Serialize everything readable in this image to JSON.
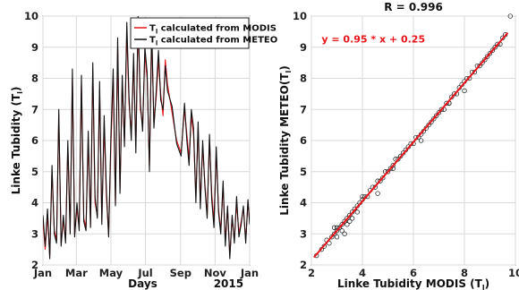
{
  "chart_data": [
    {
      "type": "line",
      "xlabel": "Days",
      "year_label": "2015",
      "ylabel": "Linke Tubidity (T",
      "ylabel_sub": "l",
      "ylabel_end": ")",
      "ylim": [
        2,
        10
      ],
      "yticks": [
        2,
        3,
        4,
        5,
        6,
        7,
        8,
        9,
        10
      ],
      "xticks": [
        "Jan",
        "Mar",
        "May",
        "Jul",
        "Sep",
        "Nov",
        "Jan"
      ],
      "xtick_days": [
        0,
        59,
        120,
        181,
        243,
        304,
        365
      ],
      "xlim": [
        0,
        365
      ],
      "grid": true,
      "legend_position": "top-right",
      "series": [
        {
          "name": "T",
          "name_sub": "l",
          "name_rest": " calculated from MODIS",
          "color": "#e8141a",
          "x": [
            0,
            4,
            8,
            12,
            16,
            20,
            24,
            28,
            32,
            36,
            40,
            44,
            48,
            52,
            56,
            60,
            64,
            68,
            72,
            76,
            80,
            84,
            88,
            92,
            96,
            100,
            104,
            108,
            112,
            116,
            120,
            124,
            128,
            132,
            136,
            140,
            144,
            148,
            152,
            156,
            160,
            164,
            168,
            172,
            176,
            180,
            184,
            188,
            192,
            196,
            200,
            204,
            208,
            212,
            216,
            220,
            228,
            236,
            244,
            250,
            254,
            258,
            262,
            266,
            270,
            274,
            278,
            282,
            286,
            290,
            294,
            298,
            302,
            306,
            310,
            314,
            318,
            322,
            326,
            330,
            334,
            338,
            342,
            346,
            350,
            354,
            358,
            362,
            365
          ],
          "values": [
            3.4,
            2.5,
            3.6,
            2.3,
            5.0,
            3.1,
            2.8,
            6.8,
            2.7,
            3.4,
            2.8,
            5.8,
            3.1,
            8.0,
            3.0,
            3.8,
            3.2,
            7.8,
            3.5,
            3.2,
            6.0,
            3.3,
            8.2,
            4.0,
            3.6,
            7.6,
            3.4,
            6.5,
            4.2,
            3.0,
            5.8,
            8.0,
            4.0,
            9.0,
            4.4,
            7.8,
            6.0,
            9.5,
            7.2,
            6.2,
            8.5,
            5.8,
            9.8,
            7.0,
            6.5,
            8.8,
            8.0,
            5.2,
            9.4,
            6.6,
            7.4,
            8.6,
            7.5,
            6.8,
            8.6,
            7.8,
            6.9,
            6.0,
            5.6,
            7.0,
            6.2,
            5.4,
            6.8,
            6.2,
            4.2,
            6.4,
            4.0,
            5.8,
            4.6,
            3.6,
            6.0,
            4.3,
            3.4,
            5.6,
            3.8,
            3.1,
            4.5,
            2.8,
            3.8,
            2.3,
            3.5,
            2.8,
            4.0,
            3.0,
            3.4,
            3.8,
            2.8,
            4.0,
            3.4
          ]
        },
        {
          "name": "T",
          "name_sub": "l",
          "name_rest": " calculated from METEO",
          "color": "#111111",
          "x": [
            0,
            4,
            8,
            12,
            16,
            20,
            24,
            28,
            32,
            36,
            40,
            44,
            48,
            52,
            56,
            60,
            64,
            68,
            72,
            76,
            80,
            84,
            88,
            92,
            96,
            100,
            104,
            108,
            112,
            116,
            120,
            124,
            128,
            132,
            136,
            140,
            144,
            148,
            152,
            156,
            160,
            164,
            168,
            172,
            176,
            180,
            184,
            188,
            192,
            196,
            200,
            204,
            208,
            212,
            216,
            220,
            228,
            236,
            244,
            250,
            254,
            258,
            262,
            266,
            270,
            274,
            278,
            282,
            286,
            290,
            294,
            298,
            302,
            306,
            310,
            314,
            318,
            322,
            326,
            330,
            334,
            338,
            342,
            346,
            350,
            354,
            358,
            362,
            365
          ],
          "values": [
            3.6,
            2.6,
            3.8,
            2.2,
            5.2,
            3.0,
            2.7,
            7.0,
            2.6,
            3.6,
            2.7,
            6.0,
            3.0,
            8.3,
            2.9,
            4.0,
            3.1,
            8.1,
            3.4,
            3.1,
            6.3,
            3.2,
            8.5,
            4.2,
            3.5,
            7.9,
            3.3,
            6.8,
            4.4,
            2.9,
            6.1,
            8.3,
            3.9,
            9.3,
            4.3,
            8.1,
            5.8,
            9.8,
            7.4,
            6.0,
            8.8,
            5.6,
            10.0,
            7.2,
            6.3,
            9.0,
            8.2,
            5.0,
            9.7,
            6.4,
            7.6,
            8.9,
            7.3,
            7.0,
            8.4,
            7.6,
            7.1,
            5.9,
            5.5,
            7.2,
            6.0,
            5.2,
            7.0,
            6.4,
            4.0,
            6.6,
            3.8,
            6.0,
            4.5,
            3.5,
            6.2,
            4.1,
            3.2,
            5.8,
            3.7,
            3.0,
            4.7,
            2.6,
            3.9,
            2.2,
            3.6,
            2.7,
            4.2,
            2.9,
            3.3,
            3.9,
            2.7,
            4.1,
            3.3
          ]
        }
      ]
    },
    {
      "type": "scatter",
      "title": "R  = 0.996",
      "xlabel": "Linke Tubidity  MODIS (T",
      "xlabel_sub": "l",
      "xlabel_end": ")",
      "ylabel": "Linke Tubidity METEO(T",
      "ylabel_sub": "l",
      "ylabel_end": ")",
      "xlim": [
        2,
        10
      ],
      "ylim": [
        2,
        10
      ],
      "xticks": [
        2,
        4,
        6,
        8,
        10
      ],
      "yticks": [
        2,
        3,
        4,
        5,
        6,
        7,
        8,
        9,
        10
      ],
      "grid": true,
      "fit": {
        "slope": 0.95,
        "intercept": 0.25,
        "label": "y = 0.95 * x + 0.25",
        "color": "#e8141a",
        "x_range": [
          2.1,
          9.7
        ]
      },
      "points": {
        "x": [
          2.2,
          2.4,
          2.5,
          2.6,
          2.7,
          2.8,
          2.9,
          3.0,
          3.0,
          3.1,
          3.2,
          3.2,
          3.3,
          3.4,
          3.4,
          3.5,
          3.6,
          3.6,
          3.7,
          3.8,
          3.8,
          3.9,
          4.0,
          4.1,
          4.2,
          4.3,
          4.4,
          4.5,
          4.6,
          4.7,
          4.8,
          4.9,
          5.0,
          5.1,
          5.2,
          5.3,
          5.4,
          5.5,
          5.6,
          5.7,
          5.8,
          5.9,
          6.0,
          6.1,
          6.2,
          6.3,
          6.4,
          6.5,
          6.6,
          6.7,
          6.8,
          6.9,
          7.0,
          7.1,
          7.2,
          7.3,
          7.4,
          7.5,
          7.6,
          7.7,
          7.8,
          7.9,
          8.0,
          8.1,
          8.2,
          8.3,
          8.4,
          8.5,
          8.6,
          8.7,
          8.8,
          8.9,
          9.0,
          9.1,
          9.2,
          9.3,
          9.4,
          9.5,
          9.6,
          9.8,
          3.0,
          3.5,
          4.0,
          4.6,
          5.2,
          6.3,
          7.4,
          8.0,
          3.3,
          2.9
        ],
        "y": [
          2.3,
          2.5,
          2.6,
          2.8,
          2.7,
          2.9,
          3.0,
          3.1,
          2.9,
          3.2,
          3.3,
          3.1,
          3.4,
          3.5,
          3.3,
          3.6,
          3.7,
          3.5,
          3.8,
          3.9,
          3.7,
          4.0,
          4.1,
          4.2,
          4.2,
          4.4,
          4.5,
          4.5,
          4.7,
          4.7,
          4.8,
          5.0,
          5.0,
          5.1,
          5.2,
          5.4,
          5.4,
          5.5,
          5.6,
          5.7,
          5.8,
          5.9,
          5.9,
          6.1,
          6.1,
          6.2,
          6.3,
          6.4,
          6.5,
          6.6,
          6.7,
          6.8,
          6.9,
          7.0,
          7.0,
          7.2,
          7.2,
          7.4,
          7.5,
          7.5,
          7.7,
          7.8,
          7.9,
          8.0,
          8.0,
          8.2,
          8.2,
          8.4,
          8.4,
          8.5,
          8.6,
          8.7,
          8.8,
          8.9,
          9.0,
          9.1,
          9.1,
          9.3,
          9.4,
          10.0,
          3.2,
          3.4,
          4.2,
          4.3,
          5.1,
          6.0,
          7.2,
          7.6,
          3.0,
          3.2
        ]
      }
    }
  ]
}
